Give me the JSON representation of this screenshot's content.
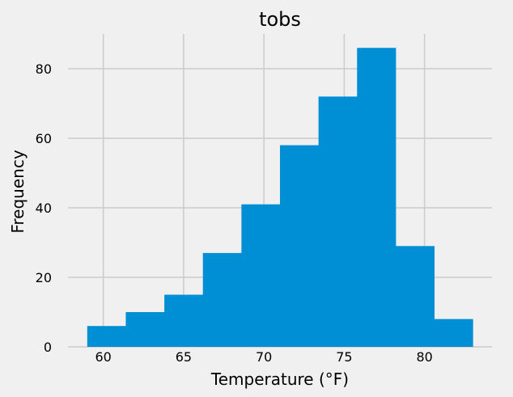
{
  "chart_data": {
    "type": "bar",
    "title": "tobs",
    "xlabel": "Temperature (°F)",
    "ylabel": "Frequency",
    "bins": [
      {
        "x0": 59.0,
        "x1": 61.4,
        "value": 6
      },
      {
        "x0": 61.4,
        "x1": 63.8,
        "value": 10
      },
      {
        "x0": 63.8,
        "x1": 66.2,
        "value": 15
      },
      {
        "x0": 66.2,
        "x1": 68.6,
        "value": 27
      },
      {
        "x0": 68.6,
        "x1": 71.0,
        "value": 41
      },
      {
        "x0": 71.0,
        "x1": 73.4,
        "value": 58
      },
      {
        "x0": 73.4,
        "x1": 75.8,
        "value": 72
      },
      {
        "x0": 75.8,
        "x1": 78.2,
        "value": 86
      },
      {
        "x0": 78.2,
        "x1": 80.6,
        "value": 29
      },
      {
        "x0": 80.6,
        "x1": 83.0,
        "value": 8
      }
    ],
    "xticks": [
      "60",
      "65",
      "70",
      "75",
      "80"
    ],
    "yticks": [
      "0",
      "20",
      "40",
      "60",
      "80"
    ],
    "xlim": [
      57.8,
      84.2
    ],
    "ylim": [
      0,
      90
    ],
    "grid": true,
    "colors": {
      "bar": "#008fd5",
      "grid": "#cbcbcb",
      "background": "#f0f0f0"
    }
  }
}
